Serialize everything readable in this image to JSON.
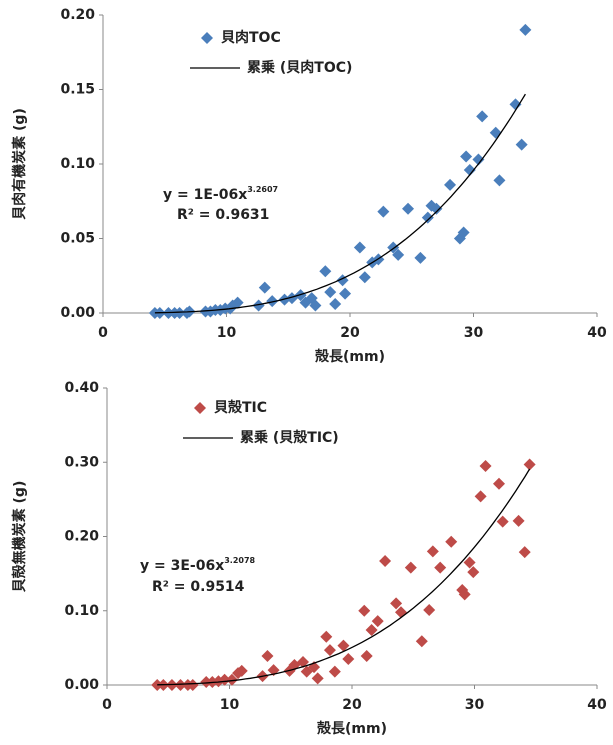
{
  "chart_data": [
    {
      "type": "scatter",
      "x_label": "殻長(mm)",
      "y_label": "貝肉有機炭素 (g)",
      "xlim": [
        0,
        40
      ],
      "xticks": [
        0,
        10,
        20,
        30,
        40
      ],
      "ylim": [
        0,
        0.2
      ],
      "yticks": [
        {
          "value": 0,
          "label": "0.00"
        },
        {
          "value": 0.05,
          "label": "0.05"
        },
        {
          "value": 0.1,
          "label": "0.10"
        },
        {
          "value": 0.15,
          "label": "0.15"
        },
        {
          "value": 0.2,
          "label": "0.20"
        }
      ],
      "series": [
        {
          "name": "貝肉TOC",
          "color": "#4a7ebb",
          "x": [
            4.2,
            4.6,
            5.3,
            5.8,
            6.2,
            6.8,
            7.0,
            8.3,
            8.7,
            9.1,
            9.5,
            9.9,
            10.3,
            10.5,
            10.9,
            12.6,
            13.1,
            13.7,
            14.7,
            15.3,
            16.0,
            16.4,
            16.9,
            17.2,
            18.0,
            18.4,
            18.8,
            19.4,
            19.6,
            20.8,
            21.2,
            21.8,
            22.3,
            22.7,
            23.5,
            23.9,
            24.7,
            25.7,
            26.3,
            26.6,
            27.0,
            28.1,
            28.9,
            29.2,
            29.4,
            29.7,
            30.4,
            30.7,
            31.8,
            32.1,
            33.4,
            33.9,
            34.2
          ],
          "values": [
            0,
            0,
            0,
            0,
            0,
            0,
            0.001,
            0.001,
            0.001,
            0.002,
            0.002,
            0.003,
            0.003,
            0.005,
            0.007,
            0.005,
            0.017,
            0.008,
            0.009,
            0.01,
            0.012,
            0.007,
            0.01,
            0.005,
            0.028,
            0.014,
            0.006,
            0.022,
            0.013,
            0.044,
            0.024,
            0.034,
            0.036,
            0.068,
            0.044,
            0.039,
            0.07,
            0.037,
            0.064,
            0.072,
            0.07,
            0.086,
            0.05,
            0.054,
            0.105,
            0.096,
            0.103,
            0.132,
            0.121,
            0.089,
            0.14,
            0.113,
            0.19
          ]
        }
      ],
      "trendline": {
        "name": "累乗 (貝肉TOC)",
        "equation": "y = 1E-06x",
        "exponent": 3.2607,
        "r_squared": "R² = 0.9631",
        "color": "#000000"
      }
    },
    {
      "type": "scatter",
      "x_label": "殻長(mm)",
      "y_label": "貝殻無機炭素 (g)",
      "xlim": [
        0,
        40
      ],
      "xticks": [
        0,
        10,
        20,
        30,
        40
      ],
      "ylim": [
        0,
        0.4
      ],
      "yticks": [
        {
          "value": 0,
          "label": "0.00"
        },
        {
          "value": 0.1,
          "label": "0.10"
        },
        {
          "value": 0.2,
          "label": "0.20"
        },
        {
          "value": 0.3,
          "label": "0.30"
        },
        {
          "value": 0.4,
          "label": "0.40"
        }
      ],
      "series": [
        {
          "name": "貝殻TIC",
          "color": "#be4b48",
          "x": [
            4.1,
            4.6,
            5.3,
            6.0,
            6.6,
            7.0,
            8.1,
            8.6,
            9.1,
            9.6,
            10.2,
            10.7,
            11.0,
            12.7,
            13.1,
            13.6,
            14.9,
            15.3,
            16.0,
            16.3,
            16.9,
            17.2,
            17.9,
            18.2,
            18.6,
            19.3,
            19.7,
            21.0,
            21.2,
            21.6,
            22.1,
            22.7,
            23.6,
            24.0,
            24.8,
            25.7,
            26.3,
            26.6,
            27.2,
            28.1,
            29.0,
            29.2,
            29.6,
            29.9,
            30.5,
            30.9,
            32.0,
            32.3,
            33.6,
            34.1,
            34.5
          ],
          "values": [
            0,
            0,
            0,
            0,
            0,
            0,
            0.004,
            0.004,
            0.005,
            0.007,
            0.007,
            0.016,
            0.019,
            0.012,
            0.039,
            0.02,
            0.019,
            0.027,
            0.031,
            0.018,
            0.024,
            0.009,
            0.065,
            0.047,
            0.018,
            0.053,
            0.035,
            0.1,
            0.039,
            0.074,
            0.086,
            0.167,
            0.11,
            0.098,
            0.158,
            0.059,
            0.101,
            0.18,
            0.158,
            0.193,
            0.128,
            0.122,
            0.165,
            0.152,
            0.254,
            0.295,
            0.271,
            0.22,
            0.221,
            0.179,
            0.297
          ]
        }
      ],
      "trendline": {
        "name": "累乗 (貝殻TIC)",
        "equation": "y = 3E-06x",
        "exponent": 3.2078,
        "r_squared": "R² = 0.9514",
        "color": "#000000"
      }
    }
  ]
}
